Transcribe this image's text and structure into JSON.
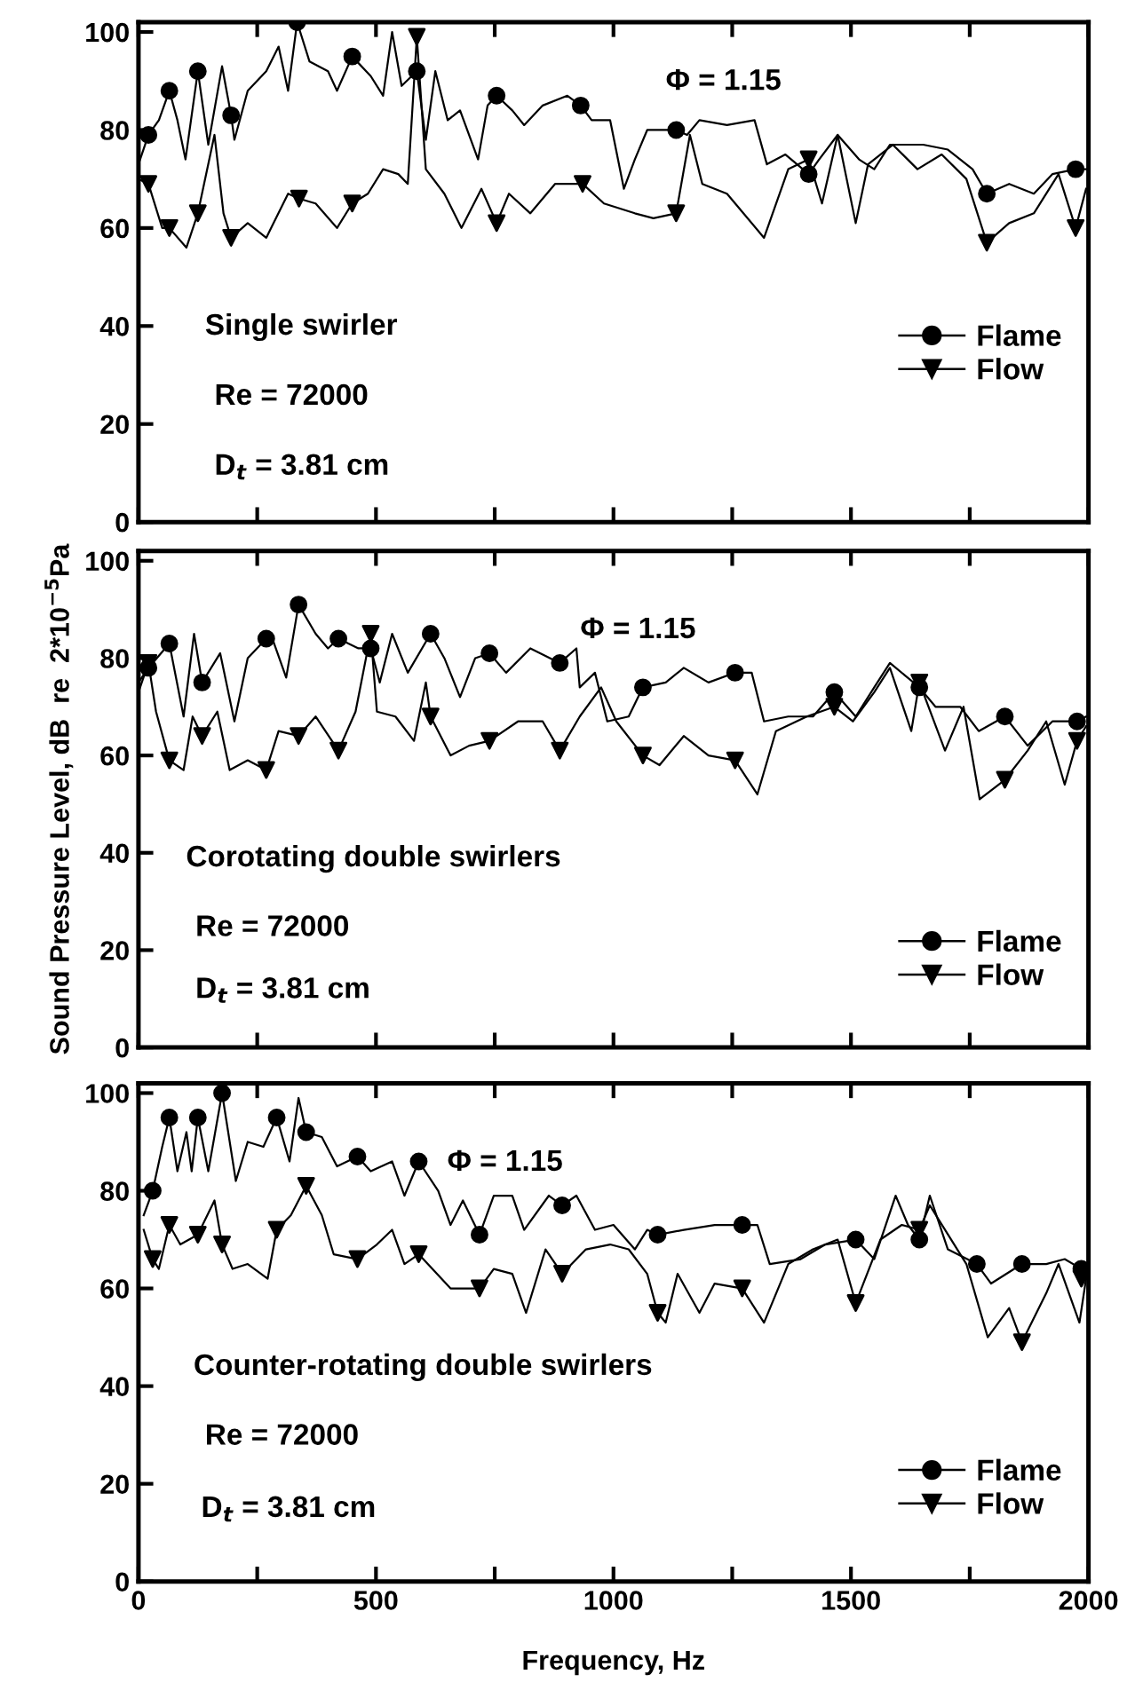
{
  "chart_data": [
    {
      "type": "line",
      "xlim": [
        0,
        2000
      ],
      "xticks": [
        {
          "value": 0,
          "label": null
        },
        {
          "value": 250,
          "label": null
        },
        {
          "value": 500,
          "label": null
        },
        {
          "value": 750,
          "label": null
        },
        {
          "value": 1000,
          "label": null
        },
        {
          "value": 1250,
          "label": null
        },
        {
          "value": 1500,
          "label": null
        },
        {
          "value": 1750,
          "label": null
        },
        {
          "value": 2000,
          "label": null
        }
      ],
      "ylim": [
        0,
        102
      ],
      "yticks": [
        0,
        20,
        40,
        60,
        80,
        100
      ],
      "tick_labels": "y",
      "grid": false,
      "legend": "right",
      "annotations": [
        "Φ = 1.15",
        "Single swirler",
        "Re = 72000",
        "D$_{t}$ = 3.81 cm"
      ],
      "series": [
        {
          "color": "#000000",
          "x": [
            0,
            21,
            43,
            65,
            82,
            99,
            125,
            147,
            176,
            195,
            202,
            230,
            269,
            295,
            315,
            334,
            360,
            399,
            418,
            450,
            489,
            515,
            534,
            554,
            586,
            605,
            625,
            651,
            677,
            715,
            735,
            754,
            787,
            812,
            851,
            903,
            931,
            954,
            993,
            1022,
            1045,
            1071,
            1132,
            1155,
            1181,
            1239,
            1297,
            1323,
            1362,
            1411,
            1433,
            1472,
            1517,
            1549,
            1582,
            1652,
            1704,
            1756,
            1786,
            1833,
            1885,
            1924,
            1973,
            1995
          ],
          "values": [
            73,
            79,
            82,
            88,
            82,
            74,
            92,
            77,
            93,
            83,
            78,
            88,
            92,
            97,
            88,
            102,
            94,
            92,
            88,
            95,
            91,
            87,
            100,
            89,
            92,
            78,
            92,
            82,
            84,
            74,
            85,
            87,
            84,
            81,
            85,
            87,
            85,
            82,
            82,
            68,
            74,
            80,
            80,
            79,
            82,
            81,
            82,
            73,
            75,
            71,
            74,
            79,
            74,
            72,
            77,
            77,
            76,
            72,
            67,
            69,
            67,
            71,
            72,
            72
          ]
        },
        {
          "color": "#000000",
          "x": [
            0,
            21,
            50,
            65,
            101,
            125,
            160,
            179,
            195,
            230,
            269,
            315,
            338,
            373,
            418,
            450,
            483,
            515,
            547,
            567,
            586,
            605,
            644,
            680,
            722,
            754,
            780,
            825,
            877,
            935,
            980,
            1045,
            1084,
            1132,
            1161,
            1187,
            1239,
            1317,
            1368,
            1411,
            1439,
            1472,
            1510,
            1536,
            1588,
            1640,
            1691,
            1743,
            1786,
            1833,
            1885,
            1937,
            1973,
            1995
          ],
          "values": [
            70,
            69,
            60,
            60,
            56,
            63,
            79,
            63,
            58,
            61,
            58,
            67,
            66,
            65,
            60,
            65,
            67,
            72,
            71,
            69,
            99,
            72,
            67,
            60,
            68,
            61,
            67,
            63,
            69,
            69,
            65,
            63,
            62,
            63,
            79,
            69,
            67,
            58,
            72,
            74,
            65,
            79,
            61,
            73,
            77,
            72,
            75,
            70,
            57,
            61,
            63,
            71,
            60,
            68
          ]
        },
        {
          "type": "scatter",
          "name": "Flame",
          "marker": "circle",
          "color": "#000000",
          "x": [
            21,
            65,
            125,
            195,
            334,
            450,
            586,
            754,
            931,
            1132,
            1411,
            1786,
            1973
          ],
          "values": [
            79,
            88,
            92,
            83,
            102,
            95,
            92,
            87,
            85,
            80,
            71,
            67,
            72
          ]
        },
        {
          "type": "scatter",
          "name": "Flow",
          "marker": "triangle",
          "color": "#000000",
          "x": [
            21,
            65,
            125,
            195,
            338,
            450,
            586,
            754,
            935,
            1132,
            1411,
            1786,
            1973
          ],
          "values": [
            69,
            60,
            63,
            58,
            66,
            65,
            99,
            61,
            69,
            63,
            74,
            57,
            60
          ]
        }
      ]
    },
    {
      "type": "line",
      "xlim": [
        0,
        2000
      ],
      "xticks": [
        {
          "value": 0,
          "label": null
        },
        {
          "value": 250,
          "label": null
        },
        {
          "value": 500,
          "label": null
        },
        {
          "value": 750,
          "label": null
        },
        {
          "value": 1000,
          "label": null
        },
        {
          "value": 1250,
          "label": null
        },
        {
          "value": 1500,
          "label": null
        },
        {
          "value": 1750,
          "label": null
        },
        {
          "value": 2000,
          "label": null
        }
      ],
      "ylim": [
        0,
        102
      ],
      "yticks": [
        0,
        20,
        40,
        60,
        80,
        100
      ],
      "tick_labels": "y",
      "grid": false,
      "legend": "bottom right",
      "ylabel": "Sound Pressure Level, dB  re  2*10$^{−5}$Pa",
      "annotations": [
        "Φ = 1.15",
        "Corotating double swirlers",
        "Re = 72000",
        "D$_{t}$ = 3.81 cm"
      ],
      "series": [
        {
          "color": "#000000",
          "x": [
            0,
            21,
            65,
            95,
            117,
            134,
            172,
            202,
            230,
            269,
            282,
            311,
            337,
            373,
            399,
            421,
            463,
            489,
            508,
            534,
            567,
            615,
            644,
            677,
            709,
            739,
            774,
            825,
            887,
            922,
            929,
            961,
            987,
            1032,
            1062,
            1110,
            1148,
            1200,
            1256,
            1291,
            1317,
            1368,
            1420,
            1465,
            1510,
            1549,
            1582,
            1644,
            1678,
            1730,
            1769,
            1824,
            1872,
            1924,
            1976,
            1995
          ],
          "values": [
            75,
            78,
            83,
            68,
            85,
            75,
            81,
            67,
            80,
            84,
            84,
            76,
            91,
            85,
            82,
            84,
            82,
            82,
            75,
            85,
            77,
            85,
            80,
            72,
            80,
            81,
            77,
            82,
            79,
            82,
            74,
            77,
            67,
            68,
            74,
            75,
            78,
            75,
            77,
            77,
            67,
            68,
            68,
            73,
            68,
            74,
            79,
            74,
            70,
            70,
            65,
            68,
            62,
            67,
            67,
            68
          ]
        },
        {
          "color": "#000000",
          "x": [
            0,
            21,
            37,
            65,
            95,
            114,
            134,
            166,
            192,
            230,
            269,
            295,
            337,
            373,
            421,
            457,
            489,
            502,
            541,
            580,
            605,
            615,
            657,
            696,
            739,
            799,
            851,
            887,
            929,
            974,
            1006,
            1062,
            1097,
            1148,
            1200,
            1256,
            1303,
            1342,
            1407,
            1465,
            1504,
            1549,
            1582,
            1627,
            1644,
            1698,
            1737,
            1771,
            1824,
            1872,
            1911,
            1950,
            1976,
            1995
          ],
          "values": [
            73,
            79,
            69,
            59,
            57,
            68,
            64,
            69,
            57,
            59,
            57,
            65,
            64,
            68,
            61,
            69,
            85,
            69,
            68,
            63,
            75,
            68,
            60,
            62,
            63,
            67,
            67,
            61,
            68,
            74,
            67,
            60,
            58,
            64,
            60,
            59,
            52,
            65,
            68,
            70,
            67,
            73,
            78,
            65,
            75,
            61,
            70,
            51,
            55,
            61,
            67,
            54,
            63,
            66
          ]
        },
        {
          "type": "scatter",
          "name": "Flame",
          "marker": "circle",
          "color": "#000000",
          "x": [
            21,
            65,
            134,
            269,
            337,
            421,
            489,
            615,
            739,
            887,
            1062,
            1256,
            1465,
            1644,
            1824,
            1976
          ],
          "values": [
            78,
            83,
            75,
            84,
            91,
            84,
            82,
            85,
            81,
            79,
            74,
            77,
            73,
            74,
            68,
            67
          ]
        },
        {
          "type": "scatter",
          "name": "Flow",
          "marker": "triangle",
          "color": "#000000",
          "x": [
            21,
            65,
            134,
            269,
            337,
            421,
            489,
            615,
            739,
            887,
            1062,
            1256,
            1465,
            1644,
            1824,
            1976
          ],
          "values": [
            79,
            59,
            64,
            57,
            64,
            61,
            85,
            68,
            63,
            61,
            60,
            59,
            70,
            75,
            55,
            63
          ]
        }
      ]
    },
    {
      "type": "line",
      "xlabel": "Frequency, Hz",
      "xlim": [
        0,
        2000
      ],
      "xticks": [
        0,
        {
          "value": 250,
          "label": null
        },
        500,
        {
          "value": 750,
          "label": null
        },
        1000,
        {
          "value": 1250,
          "label": null
        },
        1500,
        {
          "value": 1750,
          "label": null
        },
        2000
      ],
      "ylim": [
        0,
        102
      ],
      "yticks": [
        0,
        20,
        40,
        60,
        80,
        100
      ],
      "grid": false,
      "legend": "bottom right",
      "annotations": [
        "Φ = 1.15",
        "Counter-rotating double swirlers",
        "Re = 72000",
        "D$_{t}$ = 3.81 cm"
      ],
      "series": [
        {
          "color": "#000000",
          "x": [
            11,
            30,
            50,
            65,
            82,
            101,
            112,
            125,
            147,
            176,
            205,
            230,
            263,
            291,
            318,
            337,
            353,
            386,
            418,
            461,
            489,
            534,
            560,
            590,
            631,
            657,
            683,
            718,
            748,
            787,
            812,
            864,
            892,
            922,
            961,
            1000,
            1045,
            1071,
            1093,
            1148,
            1213,
            1271,
            1303,
            1329,
            1394,
            1446,
            1510,
            1549,
            1594,
            1620,
            1644,
            1666,
            1704,
            1765,
            1795,
            1860,
            1911,
            1950,
            1985
          ],
          "values": [
            75,
            80,
            89,
            95,
            84,
            92,
            84,
            95,
            84,
            100,
            82,
            90,
            89,
            95,
            86,
            99,
            92,
            91,
            85,
            87,
            84,
            86,
            79,
            86,
            80,
            73,
            78,
            71,
            79,
            79,
            72,
            79,
            77,
            79,
            72,
            73,
            68,
            72,
            71,
            72,
            73,
            73,
            73,
            65,
            66,
            69,
            70,
            66,
            79,
            73,
            70,
            79,
            68,
            65,
            61,
            65,
            65,
            66,
            64
          ]
        },
        {
          "color": "#000000",
          "x": [
            11,
            30,
            43,
            65,
            88,
            125,
            160,
            176,
            198,
            230,
            272,
            291,
            321,
            353,
            386,
            411,
            461,
            502,
            534,
            560,
            590,
            657,
            718,
            748,
            787,
            816,
            857,
            892,
            942,
            993,
            1032,
            1071,
            1093,
            1110,
            1135,
            1181,
            1213,
            1271,
            1317,
            1368,
            1420,
            1472,
            1510,
            1562,
            1607,
            1644,
            1666,
            1711,
            1743,
            1788,
            1833,
            1860,
            1911,
            1937,
            1981,
            1995
          ],
          "values": [
            72,
            66,
            64,
            73,
            69,
            71,
            78,
            69,
            64,
            65,
            62,
            72,
            75,
            81,
            75,
            67,
            66,
            69,
            72,
            65,
            67,
            60,
            60,
            64,
            63,
            55,
            68,
            63,
            68,
            69,
            68,
            63,
            55,
            53,
            63,
            55,
            61,
            60,
            53,
            65,
            68,
            70,
            57,
            70,
            73,
            72,
            77,
            70,
            65,
            50,
            56,
            49,
            59,
            65,
            53,
            62
          ]
        },
        {
          "type": "scatter",
          "name": "Flame",
          "marker": "circle",
          "color": "#000000",
          "x": [
            30,
            65,
            125,
            176,
            291,
            353,
            461,
            590,
            718,
            892,
            1093,
            1271,
            1510,
            1644,
            1765,
            1860,
            1985
          ],
          "values": [
            80,
            95,
            95,
            100,
            95,
            92,
            87,
            86,
            71,
            77,
            71,
            73,
            70,
            70,
            65,
            65,
            64
          ]
        },
        {
          "type": "scatter",
          "name": "Flow",
          "marker": "triangle",
          "color": "#000000",
          "x": [
            30,
            65,
            125,
            176,
            291,
            353,
            461,
            590,
            718,
            892,
            1093,
            1271,
            1510,
            1644,
            1860,
            1985
          ],
          "values": [
            66,
            73,
            71,
            69,
            72,
            81,
            66,
            67,
            60,
            63,
            55,
            60,
            57,
            72,
            49,
            62
          ]
        }
      ]
    }
  ]
}
